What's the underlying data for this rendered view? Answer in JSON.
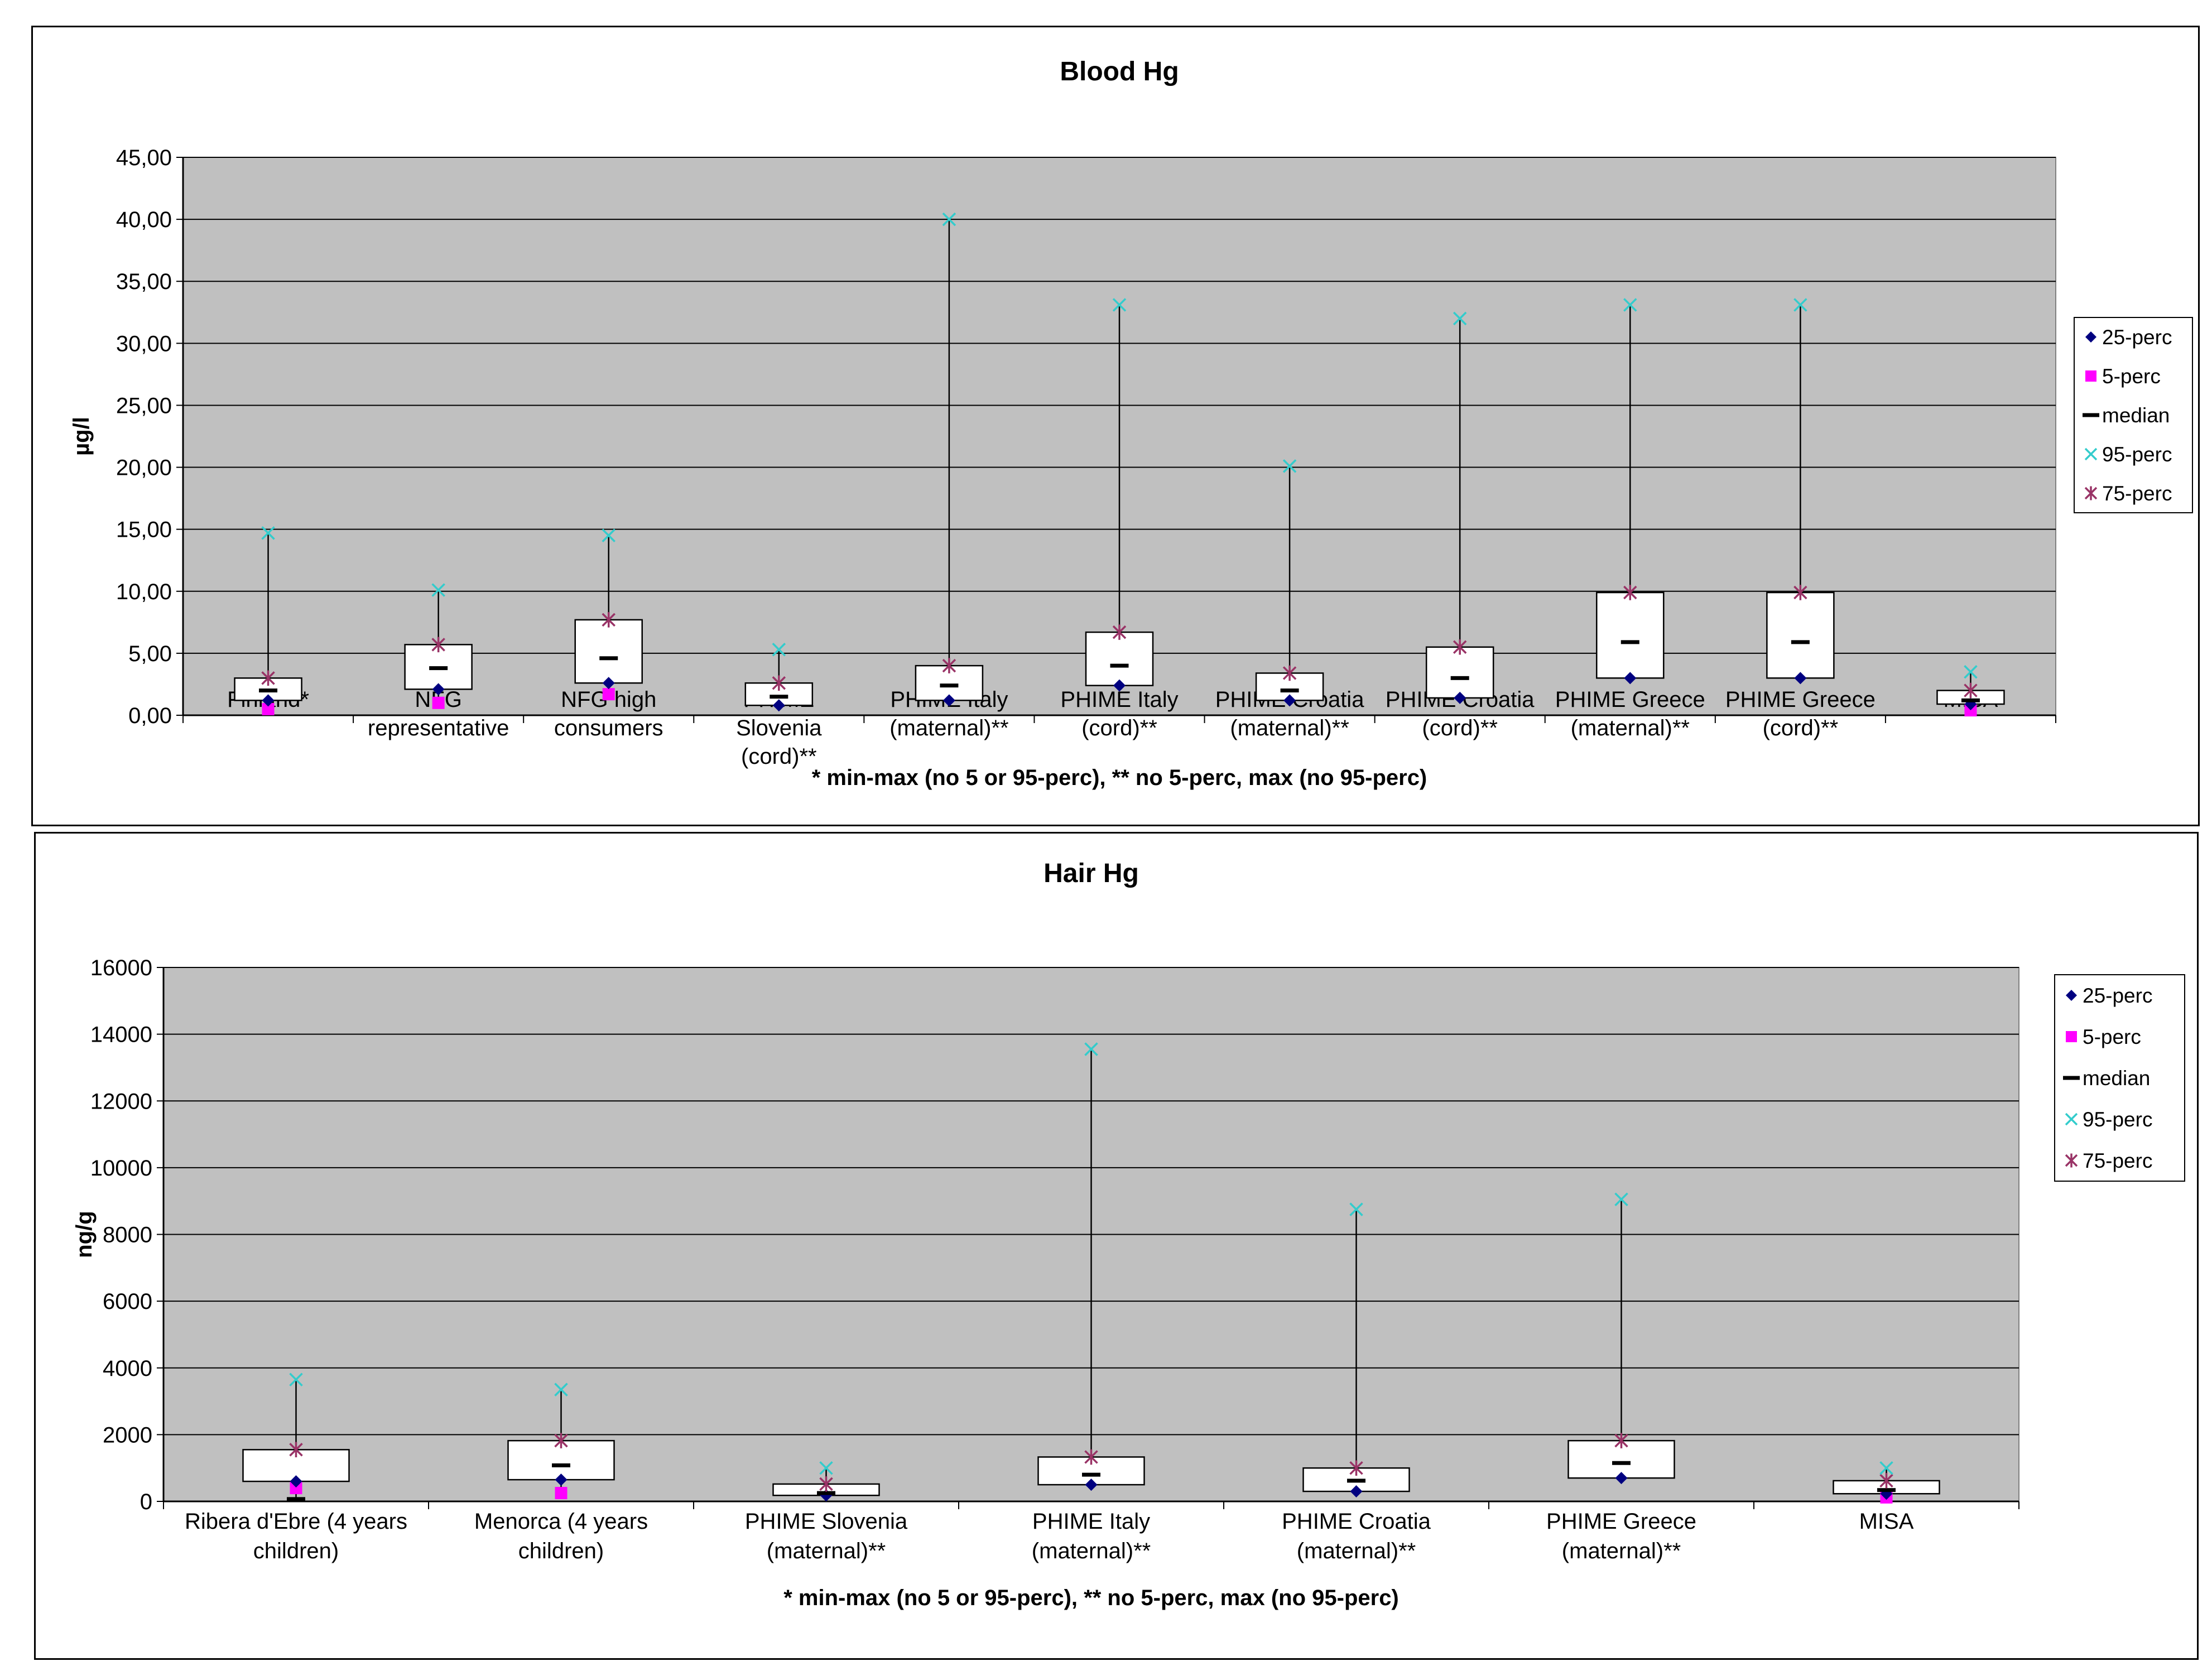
{
  "charts": [
    {
      "title": "Blood Hg",
      "ylabel": "µg/l",
      "footnote": "* min-max (no 5 or 95-perc), ** no 5-perc, max (no 95-perc)",
      "legend": [
        "25-perc",
        "5-perc",
        "median",
        "95-perc",
        "75-perc"
      ]
    },
    {
      "title": "Hair Hg",
      "ylabel": "ng/g",
      "footnote": "* min-max (no 5 or 95-perc), ** no 5-perc, max (no 95-perc)",
      "legend": [
        "25-perc",
        "5-perc",
        "median",
        "95-perc",
        "75-perc"
      ]
    }
  ],
  "chart_data": [
    {
      "type": "box",
      "title": "Blood Hg",
      "ylabel": "µg/l",
      "ylim": [
        0,
        45
      ],
      "yticks": [
        "0,00",
        "5,00",
        "10,00",
        "15,00",
        "20,00",
        "25,00",
        "30,00",
        "35,00",
        "40,00",
        "45,00"
      ],
      "grid": true,
      "legend_position": "right",
      "categories": [
        [
          "Finland*"
        ],
        [
          "NFG",
          "representative"
        ],
        [
          "NFG high",
          "consumers"
        ],
        [
          "PHIME",
          "Slovenia",
          "(cord)**"
        ],
        [
          "PHIME Italy",
          "(maternal)**"
        ],
        [
          "PHIME Italy",
          "(cord)**"
        ],
        [
          "PHIME Croatia",
          "(maternal)**"
        ],
        [
          "PHIME Croatia",
          "(cord)**"
        ],
        [
          "PHIME Greece",
          "(maternal)**"
        ],
        [
          "PHIME Greece",
          "(cord)**"
        ],
        [
          "MISA"
        ]
      ],
      "series": [
        {
          "name": "25-perc",
          "values": [
            1.2,
            2.1,
            2.6,
            0.8,
            1.2,
            2.4,
            1.2,
            1.4,
            3.0,
            3.0,
            0.9
          ]
        },
        {
          "name": "5-perc",
          "values": [
            0.5,
            1.0,
            1.7,
            null,
            null,
            null,
            null,
            null,
            null,
            null,
            0.4
          ]
        },
        {
          "name": "median",
          "values": [
            2.0,
            3.8,
            4.6,
            1.5,
            2.4,
            4.0,
            2.0,
            3.0,
            5.9,
            5.9,
            1.2
          ]
        },
        {
          "name": "95-perc",
          "values": [
            14.7,
            10.1,
            14.5,
            5.3,
            40.0,
            33.1,
            20.1,
            32.0,
            33.1,
            33.1,
            3.5
          ]
        },
        {
          "name": "75-perc",
          "values": [
            3.0,
            5.7,
            7.7,
            2.6,
            4.0,
            6.7,
            3.4,
            5.5,
            9.9,
            9.9,
            2.0
          ]
        }
      ]
    },
    {
      "type": "box",
      "title": "Hair Hg",
      "ylabel": "ng/g",
      "ylim": [
        0,
        16000
      ],
      "yticks": [
        "0",
        "2000",
        "4000",
        "6000",
        "8000",
        "10000",
        "12000",
        "14000",
        "16000"
      ],
      "grid": true,
      "legend_position": "right",
      "categories": [
        [
          "Ribera d'Ebre (4 years",
          "children)"
        ],
        [
          "Menorca (4 years",
          "children)"
        ],
        [
          "PHIME Slovenia",
          "(maternal)**"
        ],
        [
          "PHIME Italy",
          "(maternal)**"
        ],
        [
          "PHIME Croatia",
          "(maternal)**"
        ],
        [
          "PHIME Greece",
          "(maternal)**"
        ],
        [
          "MISA"
        ]
      ],
      "series": [
        {
          "name": "25-perc",
          "values": [
            600,
            650,
            180,
            500,
            300,
            700,
            230
          ]
        },
        {
          "name": "5-perc",
          "values": [
            400,
            250,
            null,
            null,
            null,
            null,
            120
          ]
        },
        {
          "name": "median",
          "values": [
            70,
            1080,
            250,
            800,
            620,
            1150,
            340
          ]
        },
        {
          "name": "95-perc",
          "values": [
            3650,
            3350,
            1000,
            13550,
            8750,
            9050,
            1000
          ]
        },
        {
          "name": "75-perc",
          "values": [
            1550,
            1820,
            520,
            1330,
            1000,
            1820,
            620
          ]
        }
      ]
    }
  ]
}
